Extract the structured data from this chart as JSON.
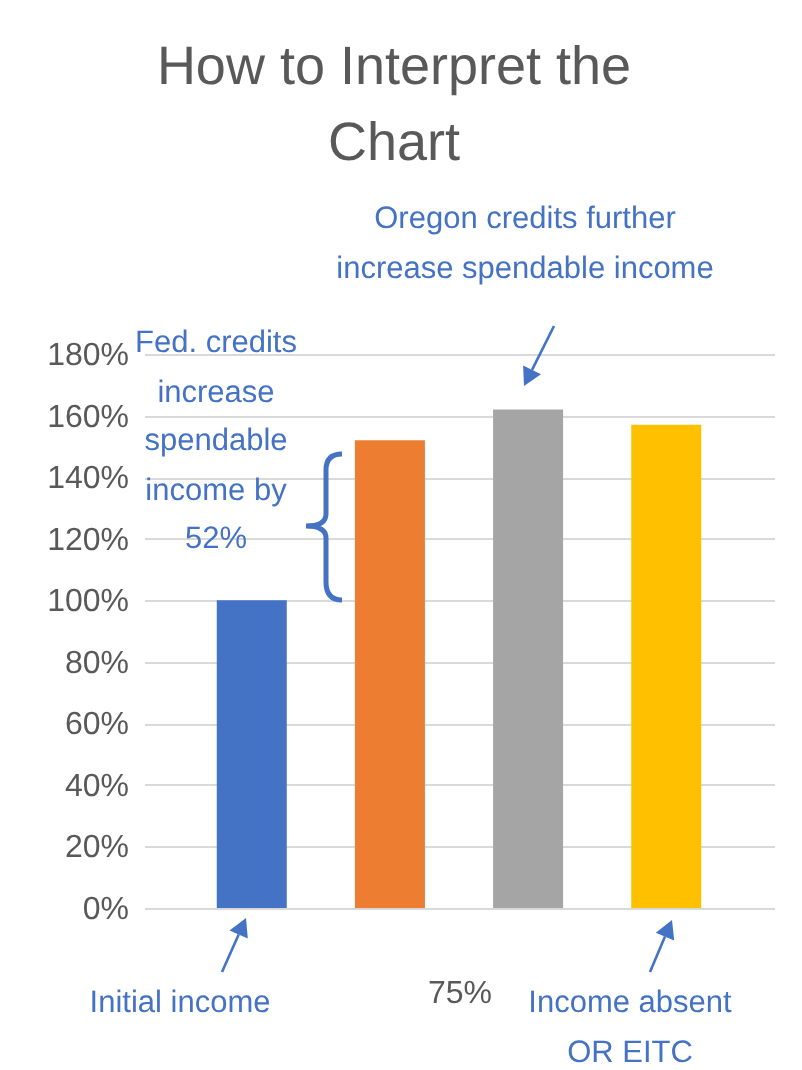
{
  "chart_data": {
    "type": "bar",
    "title": "How to Interpret the Chart",
    "xlabel": "75%",
    "categories": [
      null,
      null,
      null,
      null
    ],
    "values": [
      100,
      152,
      162,
      157
    ],
    "colors": [
      "#4472c4",
      "#ed7d31",
      "#a5a5a5",
      "#ffc000"
    ],
    "ylim": [
      0,
      180
    ],
    "yticks": [
      {
        "value": 0,
        "label": "0%"
      },
      {
        "value": 20,
        "label": "20%"
      },
      {
        "value": 40,
        "label": "40%"
      },
      {
        "value": 60,
        "label": "60%"
      },
      {
        "value": 80,
        "label": "80%"
      },
      {
        "value": 100,
        "label": "100%"
      },
      {
        "value": 120,
        "label": "120%"
      },
      {
        "value": 140,
        "label": "140%"
      },
      {
        "value": 160,
        "label": "160%"
      },
      {
        "value": 180,
        "label": "180%"
      }
    ],
    "grid": "y",
    "annotations": [
      "Fed. credits increase spendable income by 52%",
      "Oregon credits further increase spendable income",
      "Initial income",
      "Income absent OR EITC"
    ]
  }
}
